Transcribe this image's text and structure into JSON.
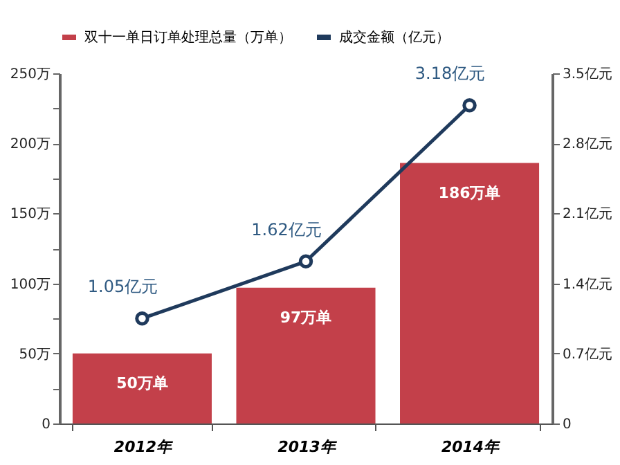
{
  "chart_data": {
    "type": "bar",
    "categories": [
      "2012年",
      "2013年",
      "2014年"
    ],
    "series": [
      {
        "name": "双十一单日订单处理总量（万单）",
        "color": "#c3404a",
        "values": [
          50,
          97,
          186
        ],
        "value_labels": [
          "50万单",
          "97万单",
          "186万单"
        ]
      },
      {
        "name": "成交金额（亿元）",
        "type": "line",
        "axis": "y2",
        "color": "#1f3a5c",
        "marker": "circle",
        "values": [
          1.05,
          1.62,
          3.18
        ],
        "value_labels": [
          "1.05亿元",
          "1.62亿元",
          "3.18亿元"
        ]
      }
    ],
    "ylim": [
      0,
      250
    ],
    "yticks": [
      0,
      {
        "value": 25,
        "label": null
      },
      {
        "value": 50,
        "label": "50万"
      },
      {
        "value": 75,
        "label": null
      },
      {
        "value": 100,
        "label": "100万"
      },
      {
        "value": 125,
        "label": null
      },
      {
        "value": 150,
        "label": "150万"
      },
      {
        "value": 175,
        "label": null
      },
      {
        "value": 200,
        "label": "200万"
      },
      {
        "value": 225,
        "label": null
      },
      {
        "value": 250,
        "label": "250万"
      }
    ],
    "y2lim": [
      0,
      3.5
    ],
    "y2ticks": [
      0,
      {
        "value": 0.7,
        "label": "0.7亿元"
      },
      {
        "value": 1.4,
        "label": "1.4亿元"
      },
      {
        "value": 2.1,
        "label": "2.1亿元"
      },
      {
        "value": 2.8,
        "label": "2.8亿元"
      },
      {
        "value": 3.5,
        "label": "3.5亿元"
      }
    ],
    "grid": false,
    "legend": "top"
  }
}
